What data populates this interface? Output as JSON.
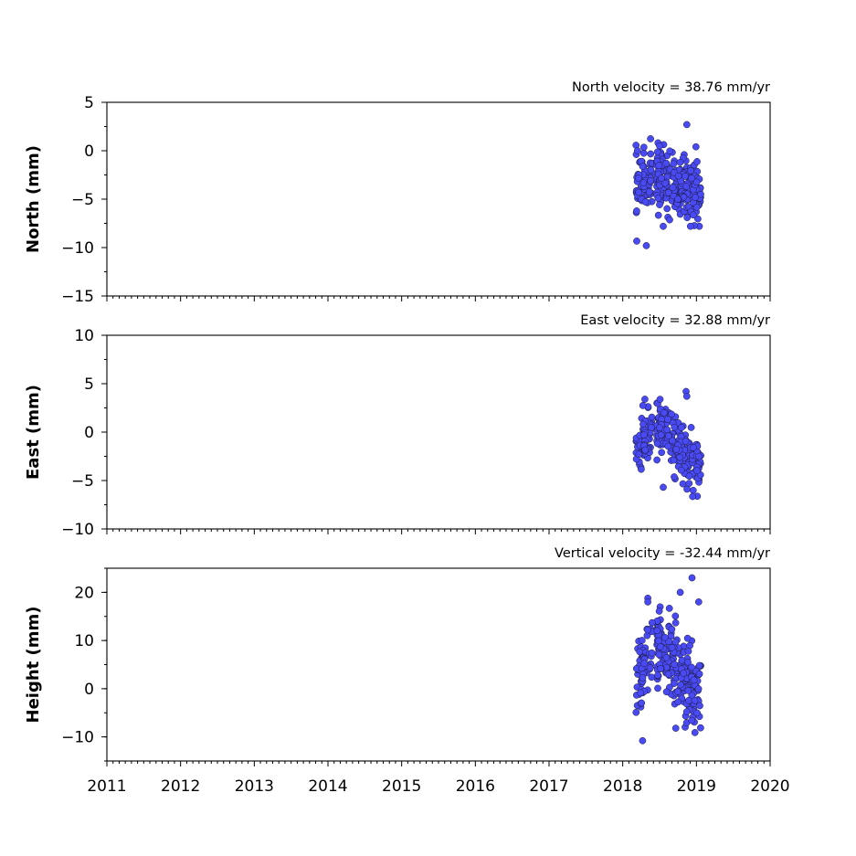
{
  "chart_data": [
    {
      "type": "scatter",
      "annotation": "North velocity = 38.76 mm/yr",
      "ylabel": "North (mm)",
      "xlim": [
        2011,
        2020
      ],
      "ylim": [
        -15,
        5
      ],
      "yticks": [
        5,
        0,
        -5,
        -10,
        -15
      ],
      "ytick_labels": [
        "5",
        "0",
        "−5",
        "−10",
        "−15"
      ],
      "x_ticklabels_visible": false,
      "marker_color": "#4a4af5",
      "center": -3.5,
      "spread": 1.6,
      "seasonal_amp": 0.7,
      "outliers": [
        [
          2018.87,
          2.7
        ],
        [
          2018.32,
          -9.8
        ],
        [
          2018.5,
          0.5
        ],
        [
          2018.55,
          -7.8
        ],
        [
          2018.2,
          0.0
        ]
      ]
    },
    {
      "type": "scatter",
      "annotation": "East velocity = 32.88 mm/yr",
      "ylabel": "East (mm)",
      "xlim": [
        2011,
        2020
      ],
      "ylim": [
        -10,
        10
      ],
      "yticks": [
        10,
        5,
        0,
        -5,
        -10
      ],
      "ytick_labels": [
        "10",
        "5",
        "0",
        "−5",
        "−10"
      ],
      "x_ticklabels_visible": false,
      "marker_color": "#4a4af5",
      "center": -1.5,
      "spread": 1.3,
      "seasonal_amp": 1.8,
      "outliers": [
        [
          2018.86,
          4.2
        ],
        [
          2018.87,
          3.7
        ],
        [
          2018.3,
          3.4
        ],
        [
          2018.55,
          -5.7
        ],
        [
          2018.9,
          -5.3
        ]
      ]
    },
    {
      "type": "scatter",
      "annotation": "Vertical velocity = -32.44 mm/yr",
      "ylabel": "Height (mm)",
      "xlim": [
        2011,
        2020
      ],
      "ylim": [
        -15,
        25
      ],
      "yticks": [
        20,
        10,
        0,
        -10
      ],
      "ytick_labels": [
        "20",
        "10",
        "0",
        "−10"
      ],
      "xticks": [
        2011,
        2012,
        2013,
        2014,
        2015,
        2016,
        2017,
        2018,
        2019,
        2020
      ],
      "xtick_labels": [
        "2011",
        "2012",
        "2013",
        "2014",
        "2015",
        "2016",
        "2017",
        "2018",
        "2019",
        "2020"
      ],
      "x_ticklabels_visible": true,
      "marker_color": "#4a4af5",
      "center": 4.0,
      "spread": 4.0,
      "seasonal_amp": 4.0,
      "outliers": [
        [
          2018.94,
          23.0
        ],
        [
          2018.78,
          20.0
        ],
        [
          2018.34,
          18.0
        ],
        [
          2018.27,
          -10.8
        ],
        [
          2018.72,
          -8.2
        ],
        [
          2018.98,
          -9.1
        ],
        [
          2019.03,
          18.0
        ]
      ]
    }
  ],
  "sampling": {
    "t_start": 2018.18,
    "t_end": 2019.06,
    "n_points": 290
  }
}
